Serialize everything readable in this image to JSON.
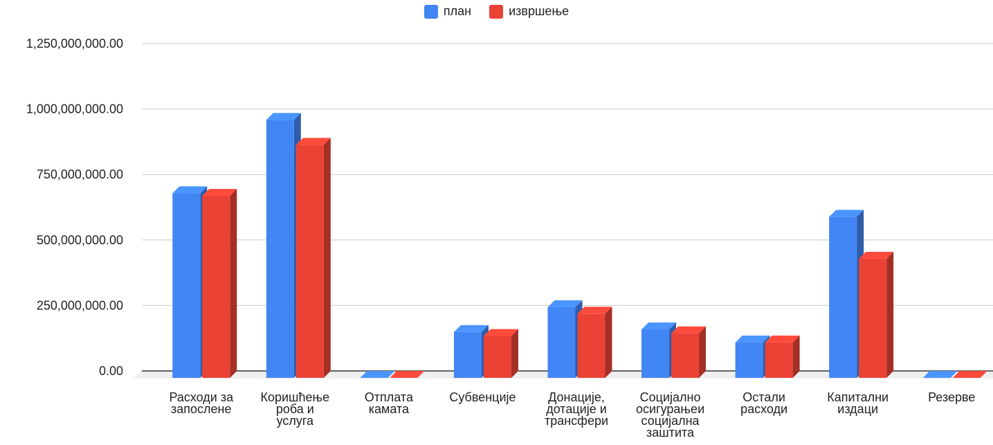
{
  "chart_data": {
    "type": "bar",
    "title": "",
    "xlabel": "",
    "ylabel": "",
    "categories": [
      [
        "Расходи за",
        "запослене"
      ],
      [
        "Коришћење",
        "роба и",
        "услуга"
      ],
      [
        "Отплата",
        "камата"
      ],
      [
        "Субвенције"
      ],
      [
        "Донације,",
        "дотације и",
        "трансфери"
      ],
      [
        "Социјално",
        "осигурањеи",
        "социјална",
        "заштита"
      ],
      [
        "Остали",
        "расходи"
      ],
      [
        "Капитални",
        "издаци"
      ],
      [
        "Резерве"
      ]
    ],
    "series": [
      {
        "name": "план",
        "color": "#4285f4",
        "values": [
          705000000,
          985000000,
          0,
          175000000,
          270000000,
          185000000,
          135000000,
          615000000,
          0
        ]
      },
      {
        "name": "извршење",
        "color": "#ea4335",
        "values": [
          695000000,
          890000000,
          0,
          160000000,
          245000000,
          170000000,
          135000000,
          455000000,
          0
        ]
      }
    ],
    "ylim": [
      0,
      1250000000
    ],
    "yticks": [
      0,
      250000000,
      500000000,
      750000000,
      1000000000,
      1250000000
    ],
    "ytick_labels": [
      "0.00",
      "250,000,000.00",
      "500,000,000.00",
      "750,000,000.00",
      "1,000,000,000.00",
      "1,250,000,000.00"
    ],
    "legend_position": "top",
    "grid": true,
    "style": "3d-bars"
  }
}
